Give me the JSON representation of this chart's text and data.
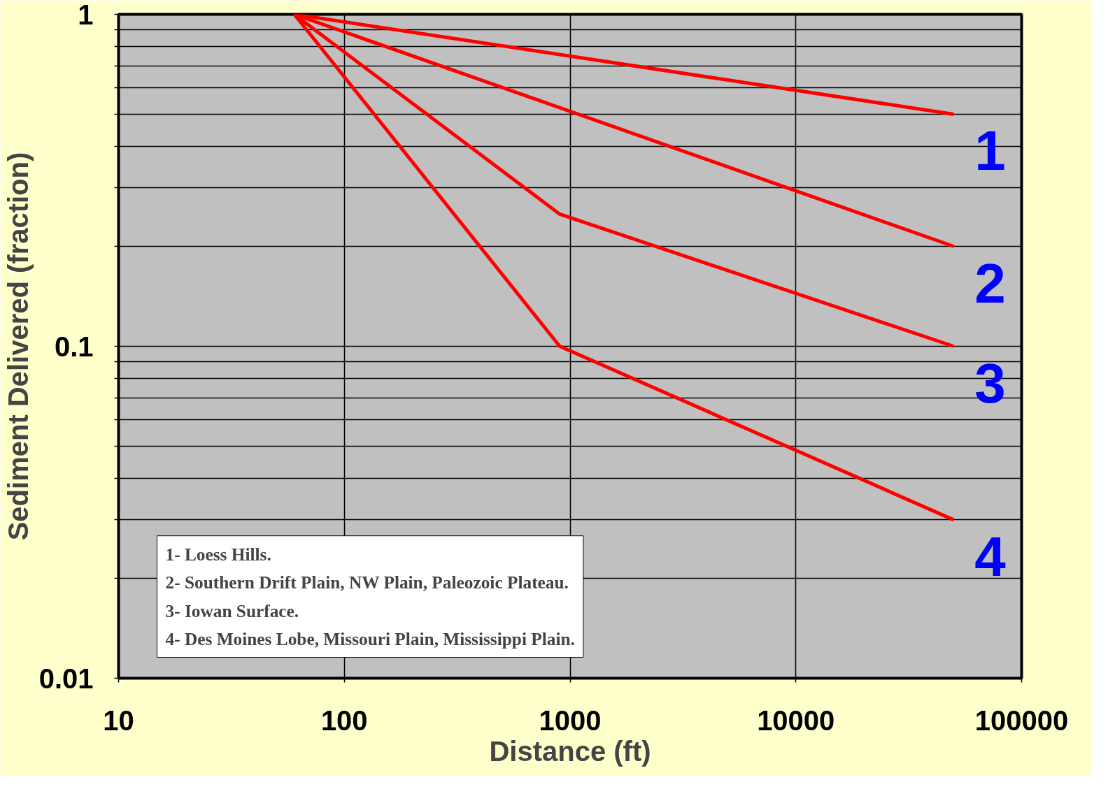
{
  "chart_data": {
    "type": "line",
    "xlabel": "Distance (ft)",
    "ylabel": "Sediment Delivered (fraction)",
    "log": "xy",
    "grid": true,
    "xlim": [
      10,
      100000
    ],
    "xticks": [
      10,
      100,
      1000,
      10000,
      100000
    ],
    "ylim": [
      0.01,
      1
    ],
    "yticks": [
      0.01,
      {
        "value": 0.02,
        "label": null
      },
      {
        "value": 0.03,
        "label": null
      },
      {
        "value": 0.04,
        "label": null
      },
      {
        "value": 0.05,
        "label": null
      },
      {
        "value": 0.06,
        "label": null
      },
      {
        "value": 0.07,
        "label": null
      },
      {
        "value": 0.08,
        "label": null
      },
      {
        "value": 0.09,
        "label": null
      },
      0.1,
      {
        "value": 0.2,
        "label": null
      },
      {
        "value": 0.3,
        "label": null
      },
      {
        "value": 0.4,
        "label": null
      },
      {
        "value": 0.5,
        "label": null
      },
      {
        "value": 0.6,
        "label": null
      },
      {
        "value": 0.7,
        "label": null
      },
      {
        "value": 0.8,
        "label": null
      },
      {
        "value": 0.9,
        "label": null
      },
      1
    ],
    "series": [
      {
        "name": "1",
        "color": "#ff0000",
        "x": [
          60,
          50000
        ],
        "values": [
          1,
          0.5
        ]
      },
      {
        "name": "2",
        "color": "#ff0000",
        "x": [
          60,
          50000
        ],
        "values": [
          1,
          0.2
        ]
      },
      {
        "name": "3",
        "color": "#ff0000",
        "x": [
          60,
          900,
          50000
        ],
        "values": [
          1,
          0.25,
          0.1
        ]
      },
      {
        "name": "4",
        "color": "#ff0000",
        "x": [
          60,
          900,
          50000
        ],
        "values": [
          1,
          0.1,
          0.03
        ]
      }
    ],
    "annotations": [
      "1- Loess Hills.",
      "2- Southern Drift Plain, NW Plain, Paleozoic Plateau.",
      "3- Iowan Surface.",
      "4- Des Moines Lobe, Missouri Plain, Mississippi Plain."
    ]
  }
}
